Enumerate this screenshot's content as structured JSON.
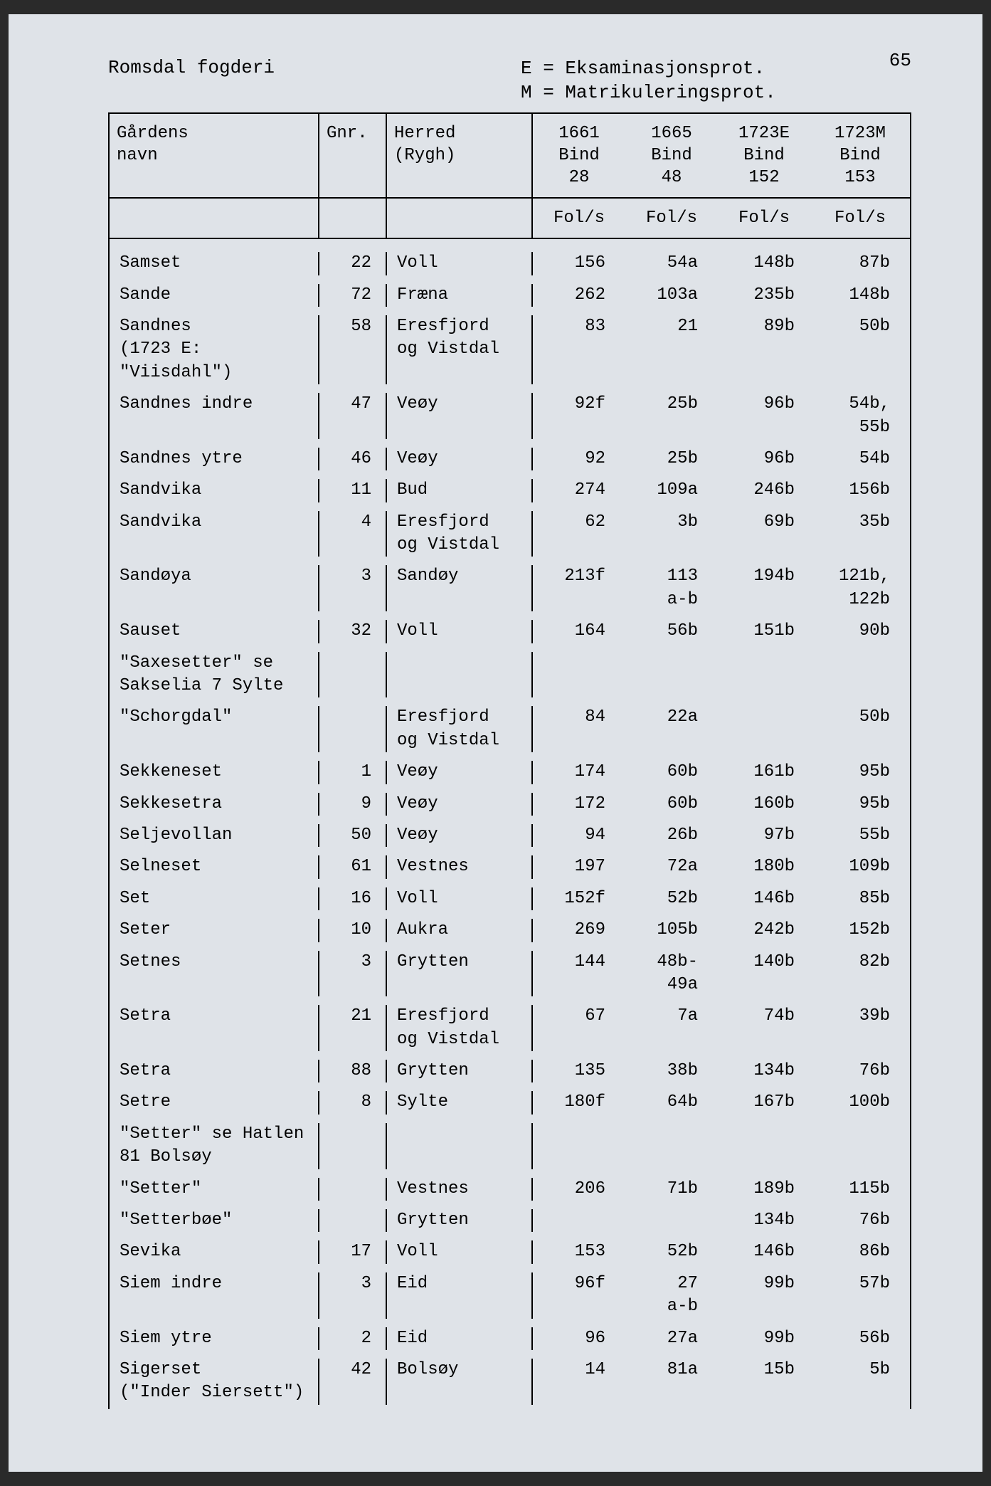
{
  "page_number": "65",
  "header": {
    "left": "Romsdal fogderi",
    "right_line1": "E = Eksaminasjonsprot.",
    "right_line2": "M = Matrikuleringsprot."
  },
  "columns": {
    "c1_line1": "Gårdens",
    "c1_line2": "navn",
    "c2": "Gnr.",
    "c3_line1": "Herred",
    "c3_line2": "(Rygh)",
    "c4_line1": "1661",
    "c4_line2": "Bind",
    "c4_line3": "28",
    "c5_line1": "1665",
    "c5_line2": "Bind",
    "c5_line3": "48",
    "c6_line1": "1723E",
    "c6_line2": "Bind",
    "c6_line3": "152",
    "c7_line1": "1723M",
    "c7_line2": "Bind",
    "c7_line3": "153"
  },
  "subhead": {
    "c4": "Fol/s",
    "c5": "Fol/s",
    "c6": "Fol/s",
    "c7": "Fol/s"
  },
  "rows": [
    {
      "name": "Samset",
      "gnr": "22",
      "herred": "Voll",
      "v1": "156",
      "v2": "54a",
      "v3": "148b",
      "v4": "87b"
    },
    {
      "name": "Sande",
      "gnr": "72",
      "herred": "Fræna",
      "v1": "262",
      "v2": "103a",
      "v3": "235b",
      "v4": "148b"
    },
    {
      "name": "Sandnes\n(1723 E: \"Viisdahl\")",
      "gnr": "58",
      "herred": "Eresfjord\nog Vistdal",
      "v1": "83",
      "v2": "21",
      "v3": "89b",
      "v4": "50b"
    },
    {
      "name": "Sandnes indre",
      "gnr": "47",
      "herred": "Veøy",
      "v1": "92f",
      "v2": "25b",
      "v3": "96b",
      "v4": "54b,\n55b"
    },
    {
      "name": "Sandnes ytre",
      "gnr": "46",
      "herred": "Veøy",
      "v1": "92",
      "v2": "25b",
      "v3": "96b",
      "v4": "54b"
    },
    {
      "name": "Sandvika",
      "gnr": "11",
      "herred": "Bud",
      "v1": "274",
      "v2": "109a",
      "v3": "246b",
      "v4": "156b"
    },
    {
      "name": "Sandvika",
      "gnr": "4",
      "herred": "Eresfjord\nog Vistdal",
      "v1": "62",
      "v2": "3b",
      "v3": "69b",
      "v4": "35b"
    },
    {
      "name": "Sandøya",
      "gnr": "3",
      "herred": "Sandøy",
      "v1": "213f",
      "v2": "113\na-b",
      "v3": "194b",
      "v4": "121b,\n122b"
    },
    {
      "name": "Sauset",
      "gnr": "32",
      "herred": "Voll",
      "v1": "164",
      "v2": "56b",
      "v3": "151b",
      "v4": "90b"
    },
    {
      "name": "\"Saxesetter\" se\nSakselia 7 Sylte",
      "gnr": "",
      "herred": "",
      "v1": "",
      "v2": "",
      "v3": "",
      "v4": ""
    },
    {
      "name": "\"Schorgdal\"",
      "gnr": "",
      "herred": "Eresfjord\nog Vistdal",
      "v1": "84",
      "v2": "22a",
      "v3": "",
      "v4": "50b"
    },
    {
      "name": "Sekkeneset",
      "gnr": "1",
      "herred": "Veøy",
      "v1": "174",
      "v2": "60b",
      "v3": "161b",
      "v4": "95b"
    },
    {
      "name": "Sekkesetra",
      "gnr": "9",
      "herred": "Veøy",
      "v1": "172",
      "v2": "60b",
      "v3": "160b",
      "v4": "95b"
    },
    {
      "name": "Seljevollan",
      "gnr": "50",
      "herred": "Veøy",
      "v1": "94",
      "v2": "26b",
      "v3": "97b",
      "v4": "55b"
    },
    {
      "name": "Selneset",
      "gnr": "61",
      "herred": "Vestnes",
      "v1": "197",
      "v2": "72a",
      "v3": "180b",
      "v4": "109b"
    },
    {
      "name": "Set",
      "gnr": "16",
      "herred": "Voll",
      "v1": "152f",
      "v2": "52b",
      "v3": "146b",
      "v4": "85b"
    },
    {
      "name": "Seter",
      "gnr": "10",
      "herred": "Aukra",
      "v1": "269",
      "v2": "105b",
      "v3": "242b",
      "v4": "152b"
    },
    {
      "name": "Setnes",
      "gnr": "3",
      "herred": "Grytten",
      "v1": "144",
      "v2": "48b-\n49a",
      "v3": "140b",
      "v4": "82b"
    },
    {
      "name": "Setra",
      "gnr": "21",
      "herred": "Eresfjord\nog Vistdal",
      "v1": "67",
      "v2": "7a",
      "v3": "74b",
      "v4": "39b"
    },
    {
      "name": "Setra",
      "gnr": "88",
      "herred": "Grytten",
      "v1": "135",
      "v2": "38b",
      "v3": "134b",
      "v4": "76b"
    },
    {
      "name": "Setre",
      "gnr": "8",
      "herred": "Sylte",
      "v1": "180f",
      "v2": "64b",
      "v3": "167b",
      "v4": "100b"
    },
    {
      "name": "\"Setter\" se Hatlen\n81 Bolsøy",
      "gnr": "",
      "herred": "",
      "v1": "",
      "v2": "",
      "v3": "",
      "v4": ""
    },
    {
      "name": "\"Setter\"",
      "gnr": "",
      "herred": "Vestnes",
      "v1": "206",
      "v2": "71b",
      "v3": "189b",
      "v4": "115b"
    },
    {
      "name": "\"Setterbøe\"",
      "gnr": "",
      "herred": "Grytten",
      "v1": "",
      "v2": "",
      "v3": "134b",
      "v4": "76b"
    },
    {
      "name": "Sevika",
      "gnr": "17",
      "herred": "Voll",
      "v1": "153",
      "v2": "52b",
      "v3": "146b",
      "v4": "86b"
    },
    {
      "name": "Siem indre",
      "gnr": "3",
      "herred": "Eid",
      "v1": "96f",
      "v2": "27\na-b",
      "v3": "99b",
      "v4": "57b"
    },
    {
      "name": "Siem ytre",
      "gnr": "2",
      "herred": "Eid",
      "v1": "96",
      "v2": "27a",
      "v3": "99b",
      "v4": "56b"
    },
    {
      "name": "Sigerset\n(\"Inder Siersett\")",
      "gnr": "42",
      "herred": "Bolsøy",
      "v1": "14",
      "v2": "81a",
      "v3": "15b",
      "v4": "5b"
    }
  ]
}
